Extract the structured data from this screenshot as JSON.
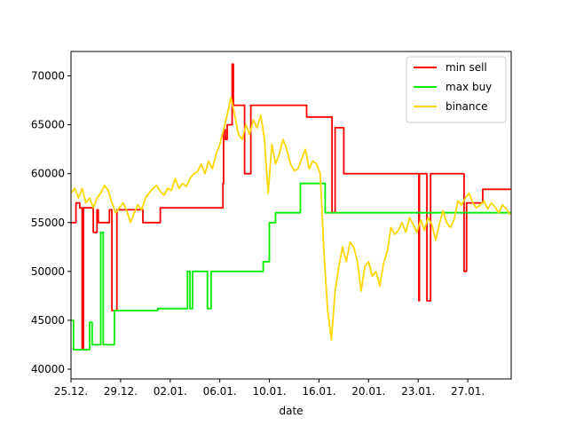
{
  "chart_data": {
    "type": "line",
    "title": "",
    "xlabel": "date",
    "ylabel": "",
    "x_ticks": [
      "25.12.",
      "29.12.",
      "02.01.",
      "06.01.",
      "10.01.",
      "16.01.",
      "20.01.",
      "23.01.",
      "27.01."
    ],
    "x_tick_positions": [
      0,
      4,
      8,
      12,
      16,
      20,
      24,
      28,
      32
    ],
    "xlim": [
      0,
      35.5
    ],
    "ylim": [
      39000,
      72500
    ],
    "y_ticks": [
      40000,
      45000,
      50000,
      55000,
      60000,
      65000,
      70000
    ],
    "grid": false,
    "legend_position": "top-right",
    "series": [
      {
        "name": "min sell",
        "color": "#ff0000",
        "step": true,
        "x": [
          0,
          0.4,
          0.7,
          0.9,
          1.0,
          1.3,
          1.8,
          2.0,
          2.1,
          2.2,
          2.3,
          2.5,
          2.7,
          2.9,
          3.0,
          3.1,
          3.2,
          3.3,
          3.7,
          3.9,
          4.0,
          4.2,
          4.4,
          4.5,
          4.6,
          4.8,
          5.0,
          5.3,
          5.6,
          5.8,
          6.0,
          6.1,
          6.3,
          6.6,
          6.8,
          7.0,
          7.2,
          7.4,
          7.6,
          7.8,
          8.0,
          8.5,
          9.0,
          9.6,
          10.0,
          10.2,
          10.6,
          11.0,
          11.5,
          12.0,
          12.25,
          12.3,
          12.45,
          12.6,
          12.8,
          13.0,
          13.05,
          13.1,
          13.5,
          14.0,
          14.5,
          15.0,
          15.3,
          15.5,
          17.0,
          18.0,
          19.0,
          20.0,
          20.5,
          21.0,
          21.05,
          21.3,
          21.5,
          22.0,
          23.0,
          24.0,
          24.5,
          25.0,
          25.5,
          26.0,
          26.1,
          26.4,
          26.8,
          27.0,
          27.5,
          28.0,
          28.05,
          28.1,
          28.5,
          28.65,
          28.7,
          29.0,
          30.0,
          31.0,
          31.6,
          31.7,
          31.9,
          32.0,
          32.4,
          32.8,
          33.2,
          33.4,
          33.6,
          34.0,
          34.5,
          35.0,
          35.5
        ],
        "y": [
          55000,
          57000,
          56500,
          42000,
          56500,
          56500,
          54000,
          54000,
          56300,
          55000,
          55000,
          55000,
          55000,
          55000,
          55000,
          56300,
          56300,
          46000,
          56300,
          56300,
          56300,
          56300,
          56300,
          56300,
          56300,
          56300,
          56300,
          56300,
          56300,
          55000,
          55000,
          55000,
          55000,
          55000,
          55000,
          55000,
          56500,
          56500,
          56500,
          56500,
          56500,
          56500,
          56500,
          56500,
          56500,
          56500,
          56500,
          56500,
          56500,
          56500,
          59000,
          64500,
          63500,
          65000,
          65000,
          71200,
          71200,
          67000,
          67000,
          60000,
          67000,
          67000,
          67000,
          67000,
          67000,
          67000,
          65800,
          65800,
          65800,
          65800,
          56000,
          64700,
          64700,
          60000,
          60000,
          60000,
          60000,
          60000,
          60000,
          60000,
          60000,
          60000,
          60000,
          60000,
          60000,
          60000,
          47000,
          60000,
          60000,
          60000,
          47000,
          60000,
          60000,
          60000,
          60000,
          50000,
          57000,
          57000,
          57000,
          57000,
          58400,
          58400,
          58400,
          58400,
          58400,
          58400,
          58400
        ]
      },
      {
        "name": "max buy",
        "color": "#00ee00",
        "step": true,
        "x": [
          0,
          0.1,
          0.2,
          0.3,
          0.4,
          0.6,
          0.8,
          1.0,
          1.3,
          1.5,
          1.7,
          1.9,
          2.0,
          2.1,
          2.2,
          2.4,
          2.6,
          2.8,
          3.0,
          3.2,
          3.5,
          3.8,
          4.0,
          4.3,
          4.6,
          5.0,
          5.5,
          6.0,
          6.5,
          7.0,
          7.5,
          8.0,
          8.5,
          9.0,
          9.2,
          9.4,
          9.6,
          9.8,
          10.0,
          10.3,
          10.6,
          11.0,
          11.3,
          11.6,
          12.0,
          12.3,
          12.5,
          12.8,
          13.0,
          13.5,
          14.0,
          14.5,
          15.0,
          15.5,
          16.0,
          16.5,
          17.0,
          17.5,
          18.0,
          18.5,
          19.0,
          19.5,
          20.0,
          20.5,
          20.8,
          21.0,
          21.3,
          21.5,
          22.0,
          22.5,
          23.0,
          23.5,
          24.0,
          24.5,
          25.0,
          25.5,
          26.0,
          26.5,
          27.0,
          27.5,
          28.0,
          28.5,
          29.0,
          29.5,
          30.0,
          30.5,
          31.0,
          31.5,
          31.7,
          31.9,
          32.0,
          32.3,
          32.6,
          32.9,
          33.2,
          33.6,
          34.0,
          34.3,
          34.6,
          35.0,
          35.5
        ],
        "y": [
          45000,
          45000,
          42000,
          42000,
          42000,
          42000,
          42000,
          42000,
          42000,
          44800,
          42500,
          42500,
          42500,
          42500,
          42500,
          54000,
          42500,
          42500,
          42500,
          42500,
          46000,
          46000,
          46000,
          46000,
          46000,
          46000,
          46000,
          46000,
          46000,
          46200,
          46200,
          46200,
          46200,
          46200,
          46200,
          50000,
          46200,
          50000,
          50000,
          50000,
          50000,
          46200,
          50000,
          50000,
          50000,
          50000,
          50000,
          50000,
          50000,
          50000,
          50000,
          50000,
          50000,
          51000,
          55000,
          56000,
          56000,
          56000,
          56000,
          59000,
          59000,
          59000,
          59000,
          56000,
          56000,
          56000,
          56000,
          56000,
          56000,
          56000,
          56000,
          56000,
          56000,
          56000,
          56000,
          56000,
          56000,
          56000,
          56000,
          56000,
          56000,
          56000,
          56000,
          56000,
          56000,
          56000,
          56000,
          56000,
          56000,
          56000,
          56000,
          56000,
          56000,
          56000,
          56000,
          56000,
          56000,
          56000,
          56000,
          56000,
          56000
        ]
      },
      {
        "name": "binance",
        "color": "#ffd700",
        "step": false,
        "x": [
          0,
          0.3,
          0.6,
          0.9,
          1.2,
          1.5,
          1.8,
          2.1,
          2.4,
          2.7,
          3.0,
          3.3,
          3.6,
          3.9,
          4.2,
          4.5,
          4.8,
          5.1,
          5.4,
          5.7,
          6.0,
          6.3,
          6.6,
          6.9,
          7.2,
          7.5,
          7.8,
          8.1,
          8.4,
          8.7,
          9.0,
          9.3,
          9.6,
          9.9,
          10.2,
          10.5,
          10.8,
          11.1,
          11.4,
          11.7,
          12.0,
          12.3,
          12.6,
          12.9,
          13.2,
          13.5,
          13.8,
          14.1,
          14.4,
          14.7,
          15.0,
          15.3,
          15.6,
          15.9,
          16.2,
          16.5,
          16.8,
          17.1,
          17.4,
          17.7,
          18.0,
          18.3,
          18.6,
          18.9,
          19.2,
          19.5,
          19.8,
          20.1,
          20.4,
          20.7,
          21.0,
          21.3,
          21.6,
          21.9,
          22.2,
          22.5,
          22.8,
          23.1,
          23.4,
          23.7,
          24.0,
          24.3,
          24.6,
          24.9,
          25.2,
          25.5,
          25.8,
          26.1,
          26.4,
          26.7,
          27.0,
          27.3,
          27.6,
          27.9,
          28.2,
          28.5,
          28.8,
          29.1,
          29.4,
          29.7,
          30.0,
          30.3,
          30.6,
          30.9,
          31.2,
          31.5,
          31.8,
          32.1,
          32.4,
          32.7,
          33.0,
          33.3,
          33.6,
          33.9,
          34.2,
          34.5,
          34.8,
          35.1,
          35.4
        ],
        "y": [
          58000,
          58500,
          57500,
          58500,
          57000,
          57500,
          56500,
          57500,
          58000,
          58800,
          58300,
          57000,
          56000,
          56500,
          57000,
          56200,
          55000,
          56000,
          56800,
          56300,
          57500,
          58000,
          58500,
          58800,
          58200,
          57800,
          58500,
          58300,
          59500,
          58500,
          59000,
          58700,
          59500,
          60000,
          60200,
          61000,
          60000,
          61300,
          60500,
          62000,
          63000,
          64500,
          66000,
          67800,
          66000,
          64000,
          63500,
          65000,
          64000,
          65500,
          64700,
          66000,
          63500,
          58000,
          63000,
          61000,
          62000,
          63500,
          62500,
          61000,
          60300,
          60500,
          61500,
          62500,
          60500,
          61300,
          61000,
          60000,
          52000,
          46000,
          43000,
          48000,
          50500,
          52500,
          51000,
          53000,
          52500,
          51000,
          48000,
          50500,
          51000,
          49500,
          50000,
          48500,
          50800,
          52000,
          54500,
          53800,
          54200,
          55000,
          54000,
          55500,
          54800,
          54000,
          55300,
          54200,
          55500,
          54800,
          53200,
          54800,
          56200,
          55000,
          54500,
          55300,
          57200,
          56800,
          57500,
          58000,
          57000,
          56500,
          56800,
          57200,
          56400,
          57000,
          56600,
          56000,
          56800,
          56400,
          55800
        ]
      }
    ]
  }
}
